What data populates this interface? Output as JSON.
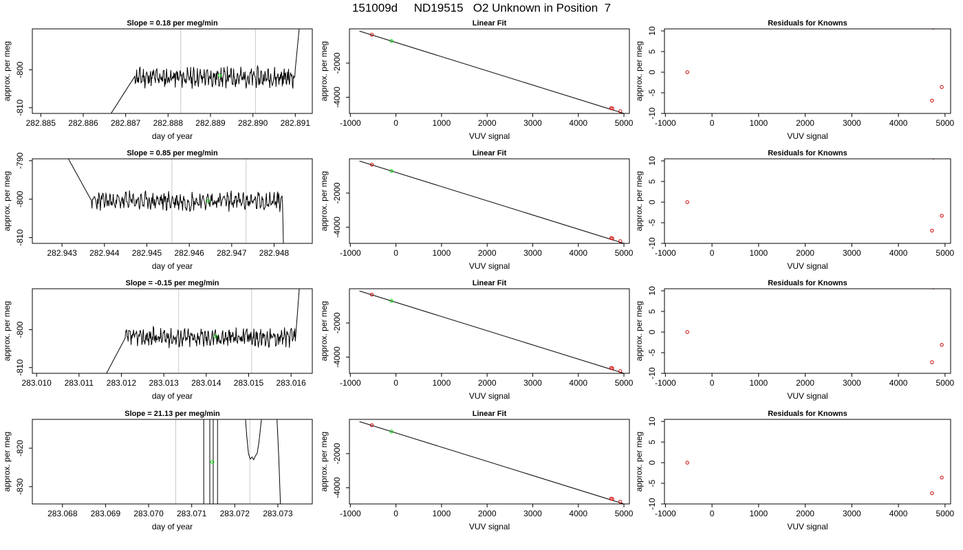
{
  "figure": {
    "title": "151009d     ND19515   O2 Unknown in Position  7"
  },
  "colors": {
    "trace": "#000000",
    "marker_unknown": "#00dd00",
    "marker_known": "#cc0000",
    "vertical_line": "#c8c8c8",
    "axes": "#000000"
  },
  "chart_data": [
    {
      "type": "line",
      "panel": "time-series-row-1",
      "title": "Slope =  0.18  per meg/min",
      "xlabel": "day of year",
      "ylabel": "approx. per meg",
      "xlim": [
        282.8848,
        282.8914
      ],
      "ylim": [
        -811.5,
        -789.2
      ],
      "xticks": [
        282.885,
        282.886,
        282.887,
        282.888,
        282.889,
        282.89,
        282.891
      ],
      "xtick_labels": [
        "282.885",
        "282.886",
        "282.887",
        "282.888",
        "282.889",
        "282.890",
        "282.891"
      ],
      "yticks": [
        -800,
        -810
      ],
      "ytick_labels": [
        "-800",
        "-810"
      ],
      "vlines": [
        282.8883,
        282.89006
      ],
      "trace_start": 282.8866,
      "trace_end": 282.891,
      "trace_level": -802,
      "trace_amp": 1.9,
      "trace_rise_x": 282.8872,
      "trace_seed": 11,
      "trace_tail": [
        282.8911,
        -789.2
      ],
      "unknown_point": {
        "x": 282.88922,
        "y": -801.5
      }
    },
    {
      "type": "scatter",
      "panel": "linear-fit-row-1",
      "title": "Linear Fit",
      "xlabel": "VUV signal",
      "ylabel": "approx. per meg",
      "xlim": [
        -1020,
        5120
      ],
      "ylim": [
        -4950,
        10
      ],
      "xticks": [
        -1000,
        0,
        1000,
        2000,
        3000,
        4000,
        5000
      ],
      "xtick_labels": [
        "-1000",
        "0",
        "1000",
        "2000",
        "3000",
        "4000",
        "5000"
      ],
      "yticks": [
        -2000,
        -4000
      ],
      "ytick_labels": [
        "-2000",
        "-4000"
      ],
      "fit_line": [
        [
          -800,
          -120
        ],
        [
          5000,
          -4950
        ]
      ],
      "known_points": [
        [
          -530,
          -330
        ],
        [
          4720,
          -4640
        ],
        [
          4745,
          -4660
        ],
        [
          4920,
          -4820
        ]
      ],
      "unknown_points": [
        [
          -100,
          -700
        ]
      ]
    },
    {
      "type": "scatter",
      "panel": "residuals-row-1",
      "title": "Residuals for Knowns",
      "xlabel": "VUV signal",
      "ylabel": "approx. per meg",
      "xlim": [
        -1020,
        5120
      ],
      "ylim": [
        -10,
        10.5
      ],
      "xticks": [
        -1000,
        0,
        1000,
        2000,
        3000,
        4000,
        5000
      ],
      "xtick_labels": [
        "-1000",
        "0",
        "1000",
        "2000",
        "3000",
        "4000",
        "5000"
      ],
      "yticks": [
        10,
        5,
        0,
        -5,
        -10
      ],
      "ytick_labels": [
        "10",
        "5",
        "0",
        "-5",
        "-10"
      ],
      "points": [
        [
          -530,
          0
        ],
        [
          4720,
          -6.9
        ],
        [
          4750,
          10.8
        ],
        [
          4930,
          -3.6
        ]
      ]
    },
    {
      "type": "line",
      "panel": "time-series-row-2",
      "title": "Slope =  0.85  per meg/min",
      "xlabel": "day of year",
      "ylabel": "approx. per meg",
      "xlim": [
        282.9423,
        282.9489
      ],
      "ylim": [
        -811.5,
        -789.5
      ],
      "xticks": [
        282.943,
        282.944,
        282.945,
        282.946,
        282.947,
        282.948
      ],
      "xtick_labels": [
        "282.943",
        "282.944",
        "282.945",
        "282.946",
        "282.947",
        "282.948"
      ],
      "yticks": [
        -790,
        -800,
        -810
      ],
      "ytick_labels": [
        "-790",
        "-800",
        "-810"
      ],
      "vlines": [
        282.94559,
        282.94734
      ],
      "trace_start": 282.9431,
      "trace_end": 282.9482,
      "trace_level": -800.5,
      "trace_amp": 1.8,
      "trace_rise_x": 282.9437,
      "trace_seed": 23,
      "trace_drop": true,
      "unknown_point": {
        "x": 282.94645,
        "y": -800.5
      }
    },
    {
      "type": "scatter",
      "panel": "linear-fit-row-2",
      "title": "Linear Fit",
      "xlabel": "VUV signal",
      "ylabel": "approx. per meg",
      "xlim": [
        -1020,
        5120
      ],
      "ylim": [
        -4950,
        10
      ],
      "xticks": [
        -1000,
        0,
        1000,
        2000,
        3000,
        4000,
        5000
      ],
      "xtick_labels": [
        "-1000",
        "0",
        "1000",
        "2000",
        "3000",
        "4000",
        "5000"
      ],
      "yticks": [
        -2000,
        -4000
      ],
      "ytick_labels": [
        "-2000",
        "-4000"
      ],
      "fit_line": [
        [
          -800,
          -120
        ],
        [
          5000,
          -4950
        ]
      ],
      "known_points": [
        [
          -530,
          -330
        ],
        [
          4720,
          -4640
        ],
        [
          4745,
          -4660
        ],
        [
          4920,
          -4820
        ]
      ],
      "unknown_points": [
        [
          -100,
          -700
        ]
      ]
    },
    {
      "type": "scatter",
      "panel": "residuals-row-2",
      "title": "Residuals for Knowns",
      "xlabel": "VUV signal",
      "ylabel": "approx. per meg",
      "xlim": [
        -1020,
        5120
      ],
      "ylim": [
        -10,
        10.5
      ],
      "xticks": [
        -1000,
        0,
        1000,
        2000,
        3000,
        4000,
        5000
      ],
      "xtick_labels": [
        "-1000",
        "0",
        "1000",
        "2000",
        "3000",
        "4000",
        "5000"
      ],
      "yticks": [
        10,
        5,
        0,
        -5,
        -10
      ],
      "ytick_labels": [
        "10",
        "5",
        "0",
        "-5",
        "-10"
      ],
      "points": [
        [
          -530,
          0
        ],
        [
          4720,
          -6.9
        ],
        [
          4750,
          10.8
        ],
        [
          4930,
          -3.3
        ]
      ]
    },
    {
      "type": "line",
      "panel": "time-series-row-3",
      "title": "Slope =  -0.15  per meg/min",
      "xlabel": "day of year",
      "ylabel": "approx. per meg",
      "xlim": [
        283.0099,
        283.0165
      ],
      "ylim": [
        -811.5,
        -789.2
      ],
      "xticks": [
        283.01,
        283.011,
        283.012,
        283.013,
        283.014,
        283.015,
        283.016
      ],
      "xtick_labels": [
        "283.010",
        "283.011",
        "283.012",
        "283.013",
        "283.014",
        "283.015",
        "283.016"
      ],
      "yticks": [
        -800,
        -810
      ],
      "ytick_labels": [
        "-800",
        "-810"
      ],
      "vlines": [
        283.01335,
        283.01507
      ],
      "trace_start": 283.0116,
      "trace_end": 283.0161,
      "trace_level": -802,
      "trace_amp": 1.8,
      "trace_rise_x": 283.0121,
      "trace_seed": 37,
      "trace_tail": [
        283.0162,
        -789.2
      ],
      "unknown_point": {
        "x": 283.01422,
        "y": -801.8
      }
    },
    {
      "type": "scatter",
      "panel": "linear-fit-row-3",
      "title": "Linear Fit",
      "xlabel": "VUV signal",
      "ylabel": "approx. per meg",
      "xlim": [
        -1020,
        5120
      ],
      "ylim": [
        -4950,
        10
      ],
      "xticks": [
        -1000,
        0,
        1000,
        2000,
        3000,
        4000,
        5000
      ],
      "xtick_labels": [
        "-1000",
        "0",
        "1000",
        "2000",
        "3000",
        "4000",
        "5000"
      ],
      "yticks": [
        -2000,
        -4000
      ],
      "ytick_labels": [
        "-2000",
        "-4000"
      ],
      "fit_line": [
        [
          -800,
          -120
        ],
        [
          5000,
          -4950
        ]
      ],
      "known_points": [
        [
          -530,
          -330
        ],
        [
          4720,
          -4640
        ],
        [
          4745,
          -4660
        ],
        [
          4920,
          -4820
        ]
      ],
      "unknown_points": [
        [
          -100,
          -700
        ]
      ]
    },
    {
      "type": "scatter",
      "panel": "residuals-row-3",
      "title": "Residuals for Knowns",
      "xlabel": "VUV signal",
      "ylabel": "approx. per meg",
      "xlim": [
        -1020,
        5120
      ],
      "ylim": [
        -10,
        10.5
      ],
      "xticks": [
        -1000,
        0,
        1000,
        2000,
        3000,
        4000,
        5000
      ],
      "xtick_labels": [
        "-1000",
        "0",
        "1000",
        "2000",
        "3000",
        "4000",
        "5000"
      ],
      "yticks": [
        10,
        5,
        0,
        -5,
        -10
      ],
      "ytick_labels": [
        "10",
        "5",
        "0",
        "-5",
        "-10"
      ],
      "points": [
        [
          -530,
          0
        ],
        [
          4720,
          -7.3
        ],
        [
          4750,
          10.8
        ],
        [
          4930,
          -3.1
        ]
      ]
    },
    {
      "type": "line",
      "panel": "time-series-row-4",
      "title": "Slope =  21.13  per meg/min",
      "xlabel": "day of year",
      "ylabel": "approx. per meg",
      "xlim": [
        283.0673,
        283.0738
      ],
      "ylim": [
        -834.5,
        -812.5
      ],
      "xticks": [
        283.068,
        283.069,
        283.07,
        283.071,
        283.072,
        283.073
      ],
      "xtick_labels": [
        "283.068",
        "283.069",
        "283.070",
        "283.071",
        "283.072",
        "283.073"
      ],
      "yticks": [
        -820,
        -830
      ],
      "ytick_labels": [
        "-820",
        "-830"
      ],
      "vlines": [
        283.07063,
        283.07235
      ],
      "spikes": [
        283.07128,
        283.07142,
        283.0715,
        283.0716
      ],
      "dip_segment": [
        [
          283.07225,
          -812.5
        ],
        [
          283.07228,
          -817.0
        ],
        [
          283.07232,
          -821.5
        ],
        [
          283.07236,
          -822.8
        ],
        [
          283.0724,
          -822.3
        ],
        [
          283.07244,
          -823.0
        ],
        [
          283.07248,
          -822.0
        ],
        [
          283.07252,
          -821.3
        ],
        [
          283.07256,
          -818.5
        ],
        [
          283.07262,
          -812.5
        ]
      ],
      "end_segment": [
        [
          283.07298,
          -812.5
        ],
        [
          283.07302,
          -822.0
        ],
        [
          283.07306,
          -834.5
        ]
      ],
      "unknown_point": {
        "x": 283.07148,
        "y": -823.6
      }
    },
    {
      "type": "scatter",
      "panel": "linear-fit-row-4",
      "title": "Linear Fit",
      "xlabel": "VUV signal",
      "ylabel": "approx. per meg",
      "xlim": [
        -1020,
        5120
      ],
      "ylim": [
        -4950,
        10
      ],
      "xticks": [
        -1000,
        0,
        1000,
        2000,
        3000,
        4000,
        5000
      ],
      "xtick_labels": [
        "-1000",
        "0",
        "1000",
        "2000",
        "3000",
        "4000",
        "5000"
      ],
      "yticks": [
        -2000,
        -4000
      ],
      "ytick_labels": [
        "-2000",
        "-4000"
      ],
      "fit_line": [
        [
          -800,
          -120
        ],
        [
          5000,
          -4950
        ]
      ],
      "known_points": [
        [
          -530,
          -330
        ],
        [
          4720,
          -4640
        ],
        [
          4745,
          -4660
        ],
        [
          4920,
          -4820
        ]
      ],
      "unknown_points": [
        [
          -100,
          -700
        ]
      ]
    },
    {
      "type": "scatter",
      "panel": "residuals-row-4",
      "title": "Residuals for Knowns",
      "xlabel": "VUV signal",
      "ylabel": "approx. per meg",
      "xlim": [
        -1020,
        5120
      ],
      "ylim": [
        -10,
        10.5
      ],
      "xticks": [
        -1000,
        0,
        1000,
        2000,
        3000,
        4000,
        5000
      ],
      "xtick_labels": [
        "-1000",
        "0",
        "1000",
        "2000",
        "3000",
        "4000",
        "5000"
      ],
      "yticks": [
        10,
        5,
        0,
        -5,
        -10
      ],
      "ytick_labels": [
        "10",
        "5",
        "0",
        "-5",
        "-10"
      ],
      "points": [
        [
          -530,
          0
        ],
        [
          4720,
          -7.4
        ],
        [
          4930,
          -3.6
        ]
      ]
    }
  ]
}
